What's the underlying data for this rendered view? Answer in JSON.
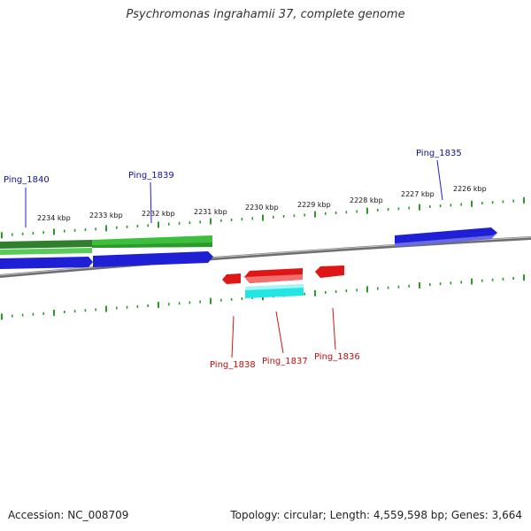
{
  "title": "Psychromonas ingrahamii 37, complete genome",
  "footer": {
    "accession": "Accession: NC_008709",
    "summary": "Topology: circular; Length: 4,559,598 bp; Genes: 3,664"
  },
  "colors": {
    "forward_gene": "#1f1fd6",
    "forward_cds": "#3dbf3d",
    "reverse_gene": "#e01515",
    "reverse_cds": "#22e6e6",
    "ticks": "#2a9a2a",
    "backbone": "#8a8a8a",
    "forward_label": "#10109a",
    "reverse_label": "#c01010"
  },
  "scale_labels": [
    "2234 kbp",
    "2233 kbp",
    "2232 kbp",
    "2231 kbp",
    "2230 kbp",
    "2229 kbp",
    "2228 kbp",
    "2227 kbp",
    "2226 kbp"
  ],
  "forward_genes": [
    "Ping_1840",
    "Ping_1839",
    "Ping_1835"
  ],
  "reverse_genes": [
    "Ping_1838",
    "Ping_1837",
    "Ping_1836"
  ]
}
